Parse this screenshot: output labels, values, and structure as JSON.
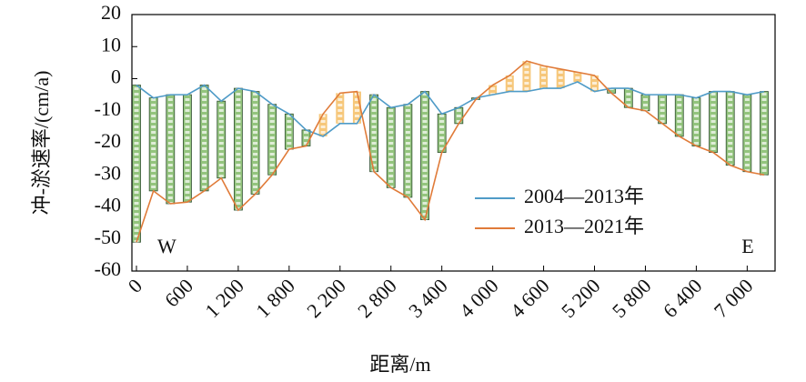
{
  "chart_data": {
    "type": "line",
    "x_label": "距离/m",
    "y_label": "冲-淤速率/(cm/a)",
    "categories": [
      "0",
      null,
      null,
      "600",
      null,
      null,
      "1 200",
      null,
      null,
      "1 800",
      null,
      null,
      "2 200",
      null,
      null,
      "2 800",
      null,
      null,
      "3 400",
      null,
      null,
      "4 000",
      null,
      null,
      "4 600",
      null,
      null,
      "5 200",
      null,
      null,
      "5 800",
      null,
      null,
      "6 400",
      null,
      null,
      "7 000",
      null
    ],
    "series": [
      {
        "name": "2004—2013年",
        "color": "#4f9bc7",
        "values": [
          -2,
          -6,
          -5,
          -5,
          -2,
          -7,
          -3,
          -4,
          -8,
          -11,
          -16,
          -18,
          -14,
          -14,
          -5,
          -9,
          -8,
          -4,
          -11,
          -9,
          -6,
          -5,
          -4,
          -4,
          -3,
          -3,
          -1,
          -4,
          -3,
          -3,
          -5,
          -5,
          -5,
          -6,
          -4,
          -4,
          -5,
          -4
        ]
      },
      {
        "name": "2013—2021年",
        "color": "#e07b39",
        "values": [
          -51,
          -35,
          -39,
          -38.5,
          -35,
          -31,
          -41,
          -36,
          -30,
          -22,
          -21,
          -11,
          -4.5,
          -4,
          -29,
          -34,
          -37,
          -44,
          -23,
          -14,
          -6.5,
          -2,
          1,
          5.5,
          4,
          3,
          2,
          1,
          -4.5,
          -9,
          -10,
          -14,
          -18,
          -21,
          -23,
          -27,
          -29,
          -30
        ]
      }
    ],
    "erosion_color": "#93c47d",
    "deposition_color": "#f6c77a",
    "annotations": [
      "W",
      "E"
    ],
    "ylim": [
      -60,
      20
    ],
    "yticks": [
      -60,
      -50,
      -40,
      -30,
      -20,
      -10,
      0,
      10,
      20
    ]
  }
}
